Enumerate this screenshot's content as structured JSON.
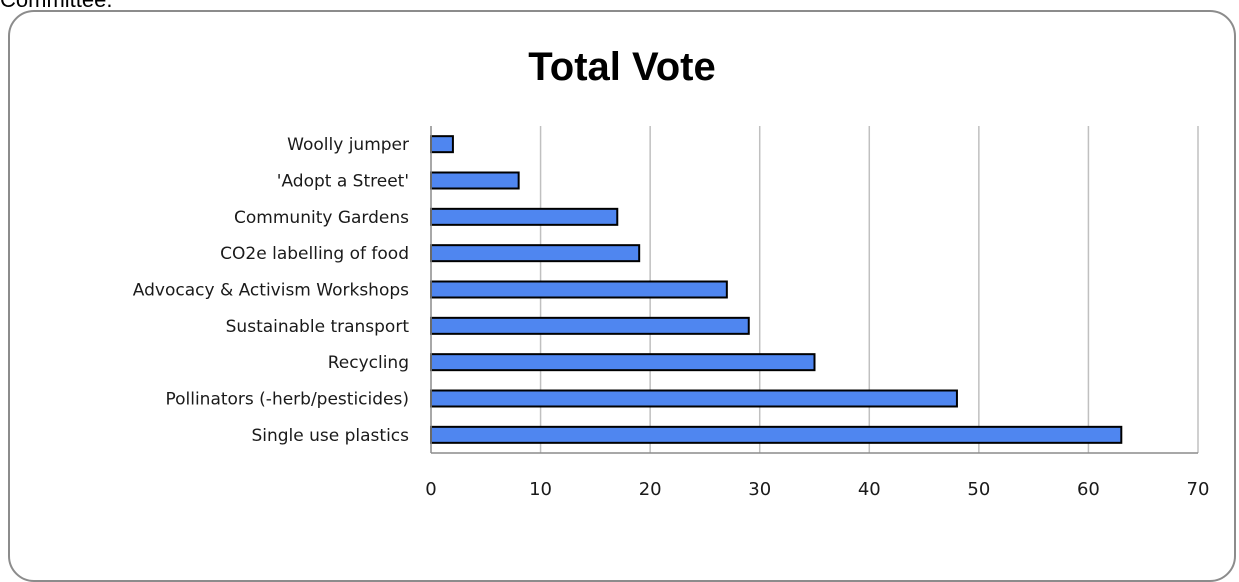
{
  "page": {
    "heading_fragment": "Committee."
  },
  "chart_data": {
    "type": "bar",
    "orientation": "horizontal",
    "title": "Total Vote",
    "categories": [
      "Woolly jumper",
      "'Adopt a Street'",
      "Community Gardens",
      "CO2e labelling of food",
      "Advocacy & Activism Workshops",
      "Sustainable transport",
      "Recycling",
      "Pollinators (-herb/pesticides)",
      "Single use plastics"
    ],
    "values": [
      2,
      8,
      17,
      19,
      27,
      29,
      35,
      48,
      63
    ],
    "xlim": [
      0,
      70
    ],
    "xticks": [
      "0",
      "10",
      "20",
      "30",
      "40",
      "50",
      "60",
      "70"
    ],
    "grid": "vertical",
    "legend": "none",
    "colors": {
      "bar_fill": "#4f86f0",
      "bar_stroke": "#000000",
      "grid": "#c0c0c0",
      "frame": "#8c8c8c"
    }
  }
}
